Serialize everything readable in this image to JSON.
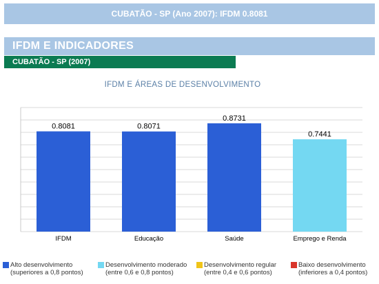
{
  "header": {
    "title": "CUBATÃO - SP (Ano 2007): IFDM 0.8081",
    "section_title": "IFDM E INDICADORES",
    "subsection_title": "CUBATÃO - SP (2007)"
  },
  "chart_data": {
    "type": "bar",
    "title": "IFDM E ÁREAS DE DESENVOLVIMENTO",
    "xlabel": "",
    "ylabel": "",
    "ylim": [
      0,
      1
    ],
    "grid": true,
    "legend_position": "bottom",
    "categories": [
      "IFDM",
      "Educação",
      "Saúde",
      "Emprego e Renda"
    ],
    "values": [
      0.8081,
      0.8071,
      0.8731,
      0.7441
    ],
    "value_labels": [
      "0.8081",
      "0.8071",
      "0.8731",
      "0.7441"
    ],
    "bar_classes": [
      "alto",
      "alto",
      "alto",
      "moderado"
    ]
  },
  "legend": [
    {
      "key": "alto",
      "line1": "Alto desenvolvimento",
      "line2": "(superiores a 0,8 pontos)",
      "color": "#2b5fd6"
    },
    {
      "key": "moderado",
      "line1": "Desenvolvimento moderado",
      "line2": "(entre 0,6 e 0,8 pontos)",
      "color": "#74d8f2"
    },
    {
      "key": "regular",
      "line1": "Desenvolvimento regular",
      "line2": "(entre 0,4 e 0,6 pontos)",
      "color": "#f0c419"
    },
    {
      "key": "baixo",
      "line1": "Baixo desenvolvimento",
      "line2": "(inferiores a 0,4 pontos)",
      "color": "#d9352b"
    }
  ]
}
